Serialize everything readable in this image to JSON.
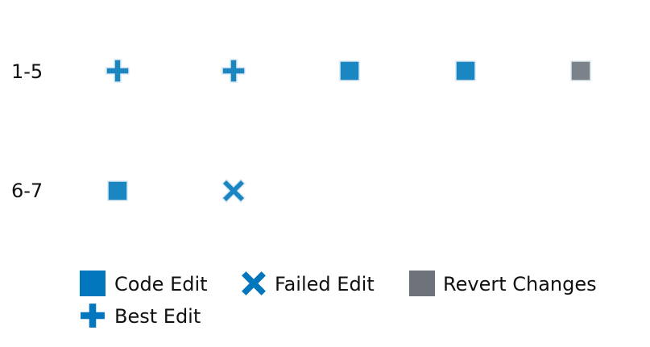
{
  "rows": [
    {
      "label": "1-5",
      "events": [
        {
          "type": "best_edit",
          "icon": "plus-icon"
        },
        {
          "type": "best_edit",
          "icon": "plus-icon"
        },
        {
          "type": "code_edit",
          "icon": "square-icon"
        },
        {
          "type": "code_edit",
          "icon": "square-icon"
        },
        {
          "type": "revert_changes",
          "icon": "square-icon"
        }
      ]
    },
    {
      "label": "6-7",
      "events": [
        {
          "type": "code_edit",
          "icon": "square-icon"
        },
        {
          "type": "failed_edit",
          "icon": "x-icon"
        }
      ]
    }
  ],
  "legend": [
    {
      "key": "code_edit",
      "label": "Code Edit",
      "icon": "square-icon",
      "color": "#0277bd"
    },
    {
      "key": "failed_edit",
      "label": "Failed Edit",
      "icon": "x-icon",
      "color": "#0277bd"
    },
    {
      "key": "revert_changes",
      "label": "Revert Changes",
      "icon": "square-icon",
      "color": "#6e737b"
    },
    {
      "key": "best_edit",
      "label": "Best Edit",
      "icon": "plus-icon",
      "color": "#0277bd"
    }
  ],
  "colors": {
    "marker_blue": "#1a87c3",
    "legend_blue": "#0277bd",
    "marker_gray": "#7c8289",
    "legend_gray": "#6e737b",
    "marker_outline": "#dbe7f1"
  }
}
